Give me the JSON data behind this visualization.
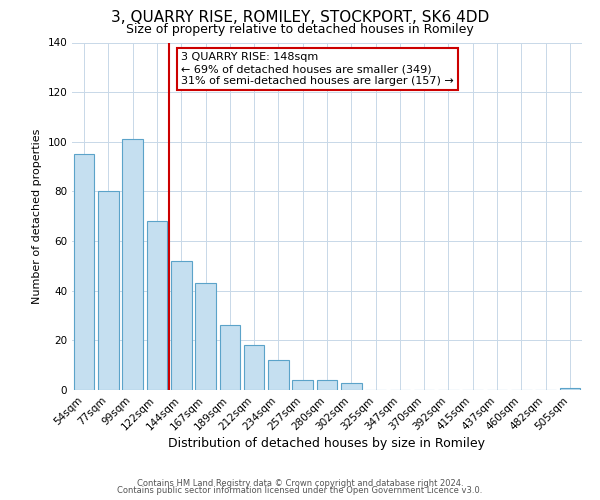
{
  "title": "3, QUARRY RISE, ROMILEY, STOCKPORT, SK6 4DD",
  "subtitle": "Size of property relative to detached houses in Romiley",
  "xlabel": "Distribution of detached houses by size in Romiley",
  "ylabel": "Number of detached properties",
  "bar_labels": [
    "54sqm",
    "77sqm",
    "99sqm",
    "122sqm",
    "144sqm",
    "167sqm",
    "189sqm",
    "212sqm",
    "234sqm",
    "257sqm",
    "280sqm",
    "302sqm",
    "325sqm",
    "347sqm",
    "370sqm",
    "392sqm",
    "415sqm",
    "437sqm",
    "460sqm",
    "482sqm",
    "505sqm"
  ],
  "bar_values": [
    95,
    80,
    101,
    68,
    52,
    43,
    26,
    18,
    12,
    4,
    4,
    3,
    0,
    0,
    0,
    0,
    0,
    0,
    0,
    0,
    1
  ],
  "bar_color": "#c5dff0",
  "bar_edge_color": "#5ba3c9",
  "highlight_line_color": "#cc0000",
  "annotation_text": "3 QUARRY RISE: 148sqm\n← 69% of detached houses are smaller (349)\n31% of semi-detached houses are larger (157) →",
  "annotation_box_color": "#ffffff",
  "annotation_box_edge": "#cc0000",
  "ylim": [
    0,
    140
  ],
  "yticks": [
    0,
    20,
    40,
    60,
    80,
    100,
    120,
    140
  ],
  "footer_line1": "Contains HM Land Registry data © Crown copyright and database right 2024.",
  "footer_line2": "Contains public sector information licensed under the Open Government Licence v3.0.",
  "background_color": "#ffffff",
  "grid_color": "#c8d8e8",
  "title_fontsize": 11,
  "subtitle_fontsize": 9,
  "xlabel_fontsize": 9,
  "ylabel_fontsize": 8,
  "tick_fontsize": 7.5,
  "footer_fontsize": 6,
  "ann_fontsize": 8
}
